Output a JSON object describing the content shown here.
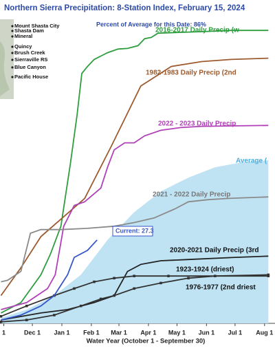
{
  "chart_data": {
    "type": "line",
    "title": "Northern Sierra Precipitation: 8-Station Index, February 15, 2024",
    "subtitle": "Percent of Average for this Date: 86%",
    "x_label": "Water Year (October 1 - September 30)",
    "stations": [
      "Mount Shasta City",
      "Shasta Dam",
      "Mineral",
      "Quincy",
      "Brush Creek",
      "Sierraville RS",
      "Blue Canyon",
      "Pacific House"
    ],
    "xlim": [
      27,
      316
    ],
    "ylim": [
      0,
      100
    ],
    "xticks": [
      {
        "value": 31,
        "label": "1"
      },
      {
        "value": 61,
        "label": "Dec 1"
      },
      {
        "value": 92,
        "label": "Jan 1"
      },
      {
        "value": 123,
        "label": "Feb 1"
      },
      {
        "value": 152,
        "label": "Mar 1"
      },
      {
        "value": 183,
        "label": "Apr 1"
      },
      {
        "value": 213,
        "label": "May 1"
      },
      {
        "value": 244,
        "label": "Jun 1"
      },
      {
        "value": 274,
        "label": "Jul 1"
      },
      {
        "value": 305,
        "label": "Aug 1"
      }
    ],
    "grid": false,
    "series": [
      {
        "name": "Average (",
        "color": "#bfe3f3",
        "fill": true,
        "x": [
          28,
          55,
          84,
          112,
          140,
          168,
          196,
          225,
          253,
          281,
          309
        ],
        "values": [
          1.8,
          4.5,
          9.1,
          15.9,
          27.3,
          36.4,
          43.2,
          47.7,
          51.1,
          52.7,
          53.4
        ]
      },
      {
        "name": "2016-2017 Daily Precip (w",
        "color": "#2e9d3e",
        "x": [
          28,
          49,
          70,
          80,
          91,
          101,
          108,
          113,
          119,
          126,
          133,
          140,
          151,
          161,
          172,
          179,
          186,
          193,
          239,
          270,
          309
        ],
        "values": [
          3.4,
          6.8,
          15.9,
          22.7,
          31.8,
          52.3,
          68.2,
          81.8,
          84.1,
          86.4,
          87.5,
          88.6,
          89.8,
          90,
          90.9,
          93.2,
          93.6,
          95,
          95.5,
          95.9,
          95.9
        ]
      },
      {
        "name": "1982-1983 Daily Precip (2nd",
        "color": "#9c5a2e",
        "x": [
          28,
          49,
          70,
          91,
          116,
          144,
          175,
          207,
          239,
          270,
          309
        ],
        "values": [
          9.1,
          18.2,
          28.4,
          34.1,
          40.9,
          58,
          77.7,
          84.1,
          85.7,
          86.4,
          86.8
        ]
      },
      {
        "name": "2022 - 2023 Daily Precip",
        "color": "#b040b8",
        "x": [
          28,
          55,
          77,
          85,
          94,
          105,
          116,
          133,
          140,
          147,
          158,
          168,
          179,
          196,
          217,
          239,
          309
        ],
        "values": [
          4.5,
          6.8,
          11.4,
          15.9,
          31.8,
          38.6,
          39.8,
          44.3,
          51.1,
          56.8,
          59.1,
          59.1,
          61.4,
          63.2,
          64.1,
          64.5,
          64.8
        ]
      },
      {
        "name": "2021 - 2022 Daily Precip",
        "color": "#8a8a8a",
        "x": [
          28,
          35,
          49,
          59,
          70,
          91,
          119,
          147,
          168,
          189,
          211,
          225,
          246,
          267,
          309
        ],
        "values": [
          13.6,
          14.1,
          17,
          29.5,
          30.7,
          30.7,
          31.1,
          31.8,
          33,
          34.5,
          37.5,
          39.8,
          40.5,
          40.9,
          41.4
        ]
      },
      {
        "name": "2020-2021 Daily Precip (3rd",
        "color": "#222222",
        "x": [
          28,
          70,
          98,
          126,
          147,
          161,
          175,
          196,
          225,
          274,
          309
        ],
        "values": [
          1.1,
          3.4,
          4.5,
          6.8,
          9.1,
          17,
          19.3,
          20.5,
          20.9,
          21.6,
          22
        ]
      },
      {
        "name": "1923-1924 (driest)",
        "color": "#333333",
        "markers": true,
        "x": [
          28,
          55,
          84,
          105,
          126,
          147,
          168,
          204,
          309
        ],
        "values": [
          2.3,
          5.7,
          9.1,
          11.4,
          13.6,
          14.8,
          15.5,
          15.5,
          15.5
        ]
      },
      {
        "name": "1976-1977 (2nd driest",
        "color": "#333333",
        "markers": true,
        "x": [
          28,
          55,
          84,
          112,
          133,
          147,
          168,
          196,
          225,
          253,
          309
        ],
        "values": [
          0.5,
          1.1,
          2.7,
          5.7,
          8,
          9.1,
          11.4,
          13.2,
          14.8,
          15.5,
          15.9
        ]
      },
      {
        "name": "Current: 27.3",
        "color": "#3556c8",
        "x": [
          28,
          49,
          70,
          84,
          98,
          105,
          119,
          129
        ],
        "values": [
          1.1,
          2.7,
          5.7,
          9.1,
          15.9,
          21.6,
          23.9,
          27.3
        ]
      }
    ]
  }
}
